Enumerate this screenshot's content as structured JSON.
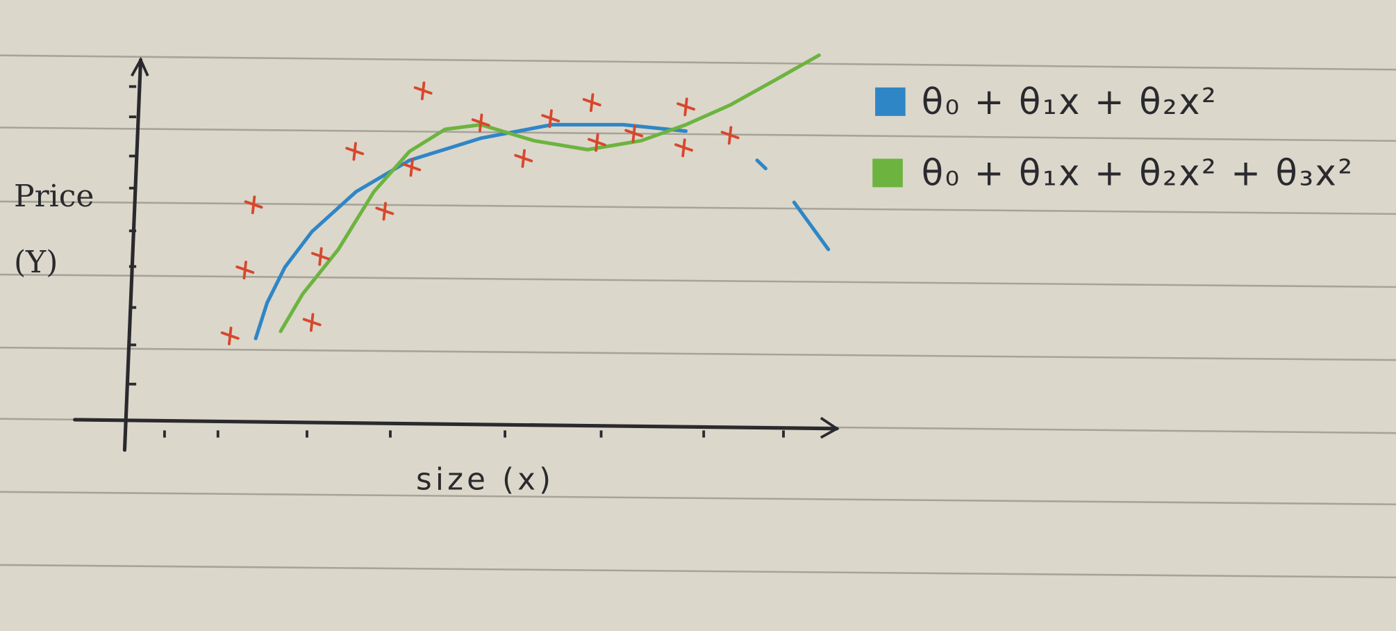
{
  "chart_data": {
    "type": "line",
    "x_label": "size (x)",
    "y_label": "Price (Y)",
    "xlim": [
      -0.7,
      10
    ],
    "ylim": [
      -0.75,
      10.75
    ],
    "xticks": [
      0.56,
      1.31,
      2.56,
      3.73,
      5.34,
      6.69,
      8.13,
      9.25
    ],
    "yticks": [
      1.1,
      2.2,
      3.25,
      4.4,
      5.4,
      6.6,
      7.5,
      8.6,
      9.45
    ],
    "points": {
      "color": "#d8472c",
      "x": [
        1.48,
        1.69,
        1.81,
        2.63,
        2.75,
        3.23,
        3.65,
        4.03,
        4.19,
        5.0,
        5.6,
        5.98,
        6.56,
        6.63,
        7.15,
        7.88,
        7.85,
        8.5
      ],
      "y": [
        2.45,
        4.3,
        6.13,
        2.83,
        4.68,
        7.63,
        5.95,
        7.18,
        9.33,
        8.43,
        7.43,
        8.55,
        9.0,
        7.88,
        8.13,
        8.88,
        7.73,
        8.08
      ]
    },
    "series": [
      {
        "name": "θ₀ + θ₁x + θ₂x²",
        "color": "#2f86c6",
        "x": [
          1.84,
          2.0,
          2.25,
          2.63,
          3.25,
          4.0,
          5.0,
          6.0,
          7.0,
          7.88,
          8.3,
          8.88,
          9.0,
          9.3,
          9.4,
          9.88,
          10.0
        ],
        "values": [
          2.38,
          3.38,
          4.38,
          5.38,
          6.5,
          7.38,
          8.0,
          8.38,
          8.38,
          8.2,
          null,
          7.38,
          7.15,
          null,
          6.2,
          4.88,
          null
        ]
      },
      {
        "name": "θ₀ + θ₁x + θ₂x² + θ₃x²",
        "color": "#6cb43f",
        "x": [
          2.19,
          2.5,
          3.0,
          3.5,
          4.0,
          4.5,
          5.0,
          5.75,
          6.5,
          7.25,
          7.88,
          8.5,
          9.13,
          9.75
        ],
        "values": [
          2.58,
          3.63,
          4.88,
          6.5,
          7.63,
          8.25,
          8.38,
          7.93,
          7.68,
          7.93,
          8.38,
          8.93,
          9.63,
          10.33
        ]
      }
    ]
  }
}
